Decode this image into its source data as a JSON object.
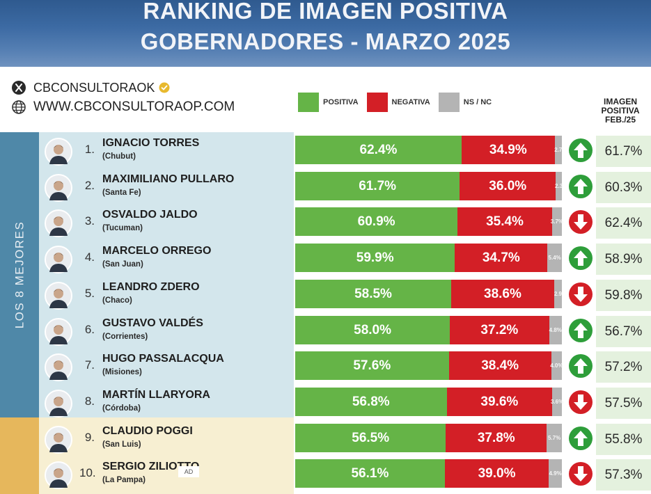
{
  "title": {
    "line1": "RANKING DE IMAGEN POSITIVA",
    "line2": "GOBERNADORES - MARZO 2025"
  },
  "social": {
    "x_handle": "CBCONSULTORAOK",
    "website": "WWW.CBCONSULTORAOP.COM",
    "x_icon": "x-logo-icon",
    "web_icon": "globe-icon",
    "verified_icon": "verified-badge-icon"
  },
  "legend": {
    "positiva": "POSITIVA",
    "negativa": "NEGATIVA",
    "nsnc": "NS / NC"
  },
  "prev_header": {
    "line1": "IMAGEN",
    "line2": "POSITIVA",
    "line3": "FEB./25"
  },
  "group_labels": {
    "top": "LOS 8 MEJORES"
  },
  "ad_label": "AD",
  "colors": {
    "positiva": "#65b447",
    "negativa": "#d31f26",
    "nsnc": "#b4b4b4",
    "up": "#2e9e3a",
    "down": "#d31f26"
  },
  "chart_data": {
    "type": "bar",
    "orientation": "horizontal",
    "stacked": true,
    "title": "RANKING DE IMAGEN POSITIVA GOBERNADORES - MARZO 2025",
    "series_labels": [
      "POSITIVA",
      "NEGATIVA",
      "NS / NC"
    ],
    "rows": [
      {
        "rank": "1.",
        "name": "IGNACIO TORRES",
        "province": "(Chubut)",
        "positiva": 62.4,
        "negativa": 34.9,
        "nsnc": 2.7,
        "pos_label": "62.4%",
        "neg_label": "34.9%",
        "ns_label": "2.7",
        "trend": "up",
        "prev": "61.7%"
      },
      {
        "rank": "2.",
        "name": "MAXIMILIANO PULLARO",
        "province": "(Santa Fe)",
        "positiva": 61.7,
        "negativa": 36.0,
        "nsnc": 2.3,
        "pos_label": "61.7%",
        "neg_label": "36.0%",
        "ns_label": "2.3",
        "trend": "up",
        "prev": "60.3%"
      },
      {
        "rank": "3.",
        "name": "OSVALDO JALDO",
        "province": "(Tucuman)",
        "positiva": 60.9,
        "negativa": 35.4,
        "nsnc": 3.7,
        "pos_label": "60.9%",
        "neg_label": "35.4%",
        "ns_label": "3.7%",
        "trend": "down",
        "prev": "62.4%"
      },
      {
        "rank": "4.",
        "name": "MARCELO ORREGO",
        "province": "(San Juan)",
        "positiva": 59.9,
        "negativa": 34.7,
        "nsnc": 5.4,
        "pos_label": "59.9%",
        "neg_label": "34.7%",
        "ns_label": "5.4%",
        "trend": "up",
        "prev": "58.9%"
      },
      {
        "rank": "5.",
        "name": "LEANDRO ZDERO",
        "province": "(Chaco)",
        "positiva": 58.5,
        "negativa": 38.6,
        "nsnc": 2.9,
        "pos_label": "58.5%",
        "neg_label": "38.6%",
        "ns_label": "2.9",
        "trend": "down",
        "prev": "59.8%"
      },
      {
        "rank": "6.",
        "name": "GUSTAVO VALDÉS",
        "province": "(Corrientes)",
        "positiva": 58.0,
        "negativa": 37.2,
        "nsnc": 4.8,
        "pos_label": "58.0%",
        "neg_label": "37.2%",
        "ns_label": "4.8%",
        "trend": "up",
        "prev": "56.7%"
      },
      {
        "rank": "7.",
        "name": "HUGO PASSALACQUA",
        "province": "(Misiones)",
        "positiva": 57.6,
        "negativa": 38.4,
        "nsnc": 4.0,
        "pos_label": "57.6%",
        "neg_label": "38.4%",
        "ns_label": "4.0%",
        "trend": "up",
        "prev": "57.2%"
      },
      {
        "rank": "8.",
        "name": "MARTÍN LLARYORA",
        "province": "(Córdoba)",
        "positiva": 56.8,
        "negativa": 39.6,
        "nsnc": 3.6,
        "pos_label": "56.8%",
        "neg_label": "39.6%",
        "ns_label": "3.6%",
        "trend": "down",
        "prev": "57.5%"
      },
      {
        "rank": "9.",
        "name": "CLAUDIO POGGI",
        "province": "(San Luis)",
        "positiva": 56.5,
        "negativa": 37.8,
        "nsnc": 5.7,
        "pos_label": "56.5%",
        "neg_label": "37.8%",
        "ns_label": "5.7%",
        "trend": "up",
        "prev": "55.8%"
      },
      {
        "rank": "10.",
        "name": "SERGIO ZILIOTTO",
        "province": "(La Pampa)",
        "positiva": 56.1,
        "negativa": 39.0,
        "nsnc": 4.9,
        "pos_label": "56.1%",
        "neg_label": "39.0%",
        "ns_label": "4.9%",
        "trend": "down",
        "prev": "57.3%"
      }
    ]
  }
}
